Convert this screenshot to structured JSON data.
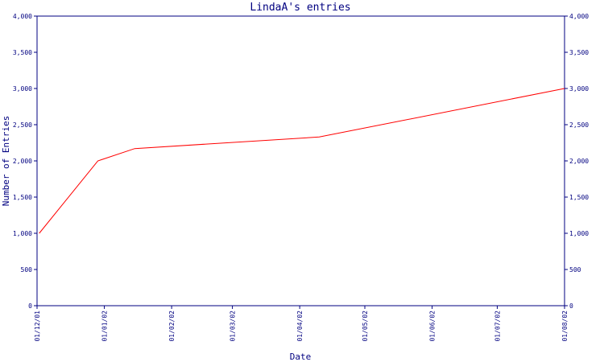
{
  "chart_data": {
    "type": "line",
    "title": "LindaA's entries",
    "xlabel": "Date",
    "ylabel": "Number of Entries",
    "x_ticks": [
      "01/12/01",
      "01/01/02",
      "01/02/02",
      "01/03/02",
      "01/04/02",
      "01/05/02",
      "01/06/02",
      "01/07/02",
      "01/08/02"
    ],
    "ylim": [
      0,
      4000
    ],
    "y_ticks": [
      0,
      500,
      1000,
      1500,
      2000,
      2500,
      3000,
      3500,
      4000
    ],
    "y_tick_labels": [
      "0",
      "500",
      "1,000",
      "1,500",
      "2,000",
      "2,500",
      "3,000",
      "3,500",
      "4,000"
    ],
    "series": [
      {
        "color": "#ff0000",
        "points": [
          {
            "x": "2001-12-02",
            "y": 1000
          },
          {
            "x": "2001-12-29",
            "y": 2000
          },
          {
            "x": "2002-01-15",
            "y": 2170
          },
          {
            "x": "2002-04-10",
            "y": 2330
          },
          {
            "x": "2002-08-01",
            "y": 3000
          }
        ]
      }
    ],
    "grid": false,
    "axis_color": "#000080"
  }
}
